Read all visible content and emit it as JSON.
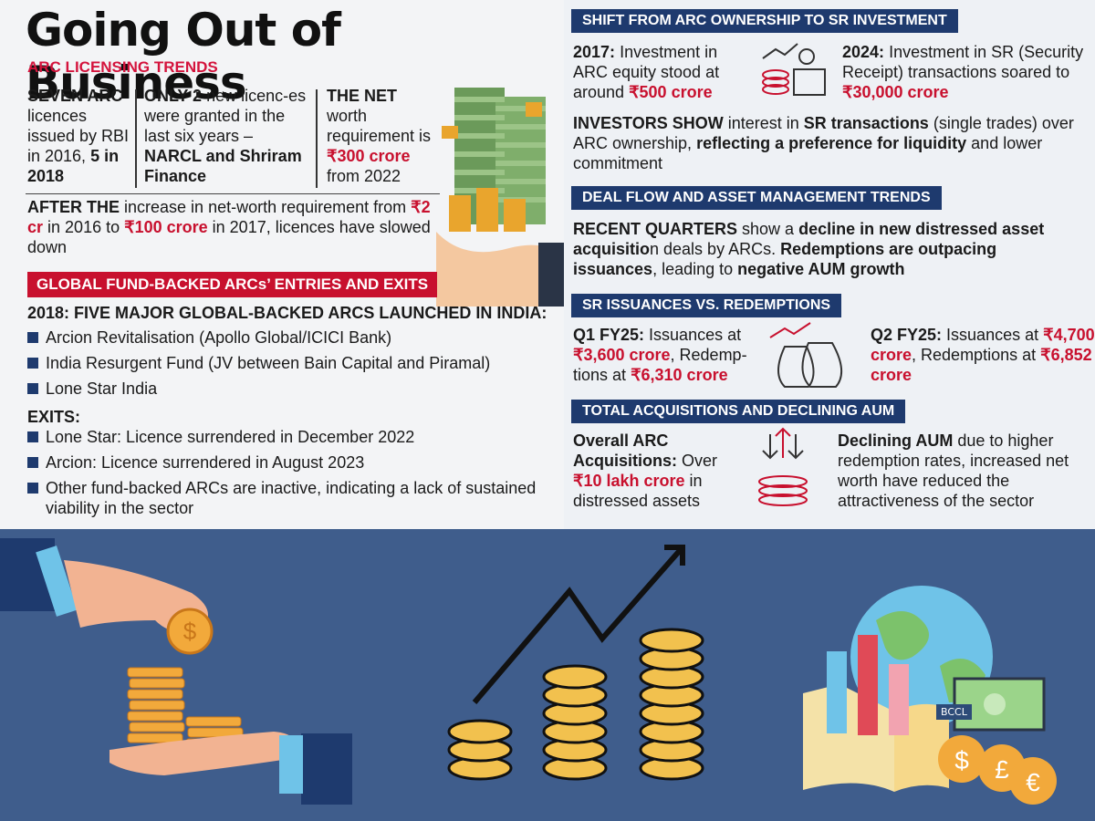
{
  "title": "Going Out of Business",
  "licensing": {
    "heading": "ARC LICENSING TRENDS",
    "col1_bold": "SEVEN ARC",
    "col1_text": "licences issued by RBI in 2016,",
    "col1_bold2": "5 in 2018",
    "col2_bold": "ONLY 2",
    "col2_text": "new licenc-es were granted in the last six years –",
    "col2_bold2": "NARCL and Shriram Finance",
    "col3_bold": "THE NET",
    "col3_text": "worth requirement is",
    "col3_red": "₹300 crore",
    "col3_text2": "from 2022",
    "after_bold": "AFTER THE",
    "after_text1": "increase in net-worth requirement from",
    "after_red1": "₹2 cr",
    "after_text2": "in 2016 to",
    "after_red2": "₹100 crore",
    "after_text3": "in 2017, licences have slowed down"
  },
  "global": {
    "heading": "GLOBAL FUND-BACKED ARCs’ ENTRIES AND EXITS",
    "launch_heading": "2018: FIVE MAJOR GLOBAL-BACKED ARCS LAUNCHED IN INDIA:",
    "launched": [
      "Arcion Revitalisation (Apollo Global/ICICI Bank)",
      "India Resurgent Fund (JV between Bain Capital and Piramal)",
      "Lone Star India"
    ],
    "exits_heading": "EXITS:",
    "exits": [
      "Lone Star: Licence surrendered in December 2022",
      "Arcion: Licence surrendered in August 2023",
      "Other fund-backed ARCs are inactive, indicating a lack of sustained viability in the sector"
    ]
  },
  "shift": {
    "heading": "SHIFT FROM ARC OWNERSHIP TO SR INVESTMENT",
    "y2017_bold": "2017:",
    "y2017_text": "Investment in ARC equity stood at around",
    "y2017_red": "₹500 crore",
    "y2024_bold": "2024:",
    "y2024_text": "Investment in SR (Security Receipt) transactions soared to",
    "y2024_red": "₹30,000 crore",
    "investors_bold": "INVESTORS SHOW",
    "investors_text1": "interest in",
    "investors_bold2": "SR transactions",
    "investors_text2": "(single trades) over ARC ownership,",
    "investors_bold3": "reflecting a preference for liquidity",
    "investors_text3": "and lower commitment"
  },
  "dealflow": {
    "heading": "DEAL FLOW AND ASSET MANAGEMENT TRENDS",
    "bold1": "RECENT QUARTERS",
    "text1": "show a",
    "bold2": "decline in new distressed asset acquisitio",
    "text2": "n deals by ARCs.",
    "bold3": "Redemptions are outpacing issuances",
    "text3": ", leading to",
    "bold4": "negative AUM growth"
  },
  "sr": {
    "heading": "SR ISSUANCES VS. REDEMPTIONS",
    "q1_bold": "Q1 FY25:",
    "q1_text1": "Issuances at",
    "q1_red1": "₹3,600 crore",
    "q1_text2": ", Redemp-tions at",
    "q1_red2": "₹6,310 crore",
    "q2_bold": "Q2 FY25:",
    "q2_text1": "Issuances at",
    "q2_red1": "₹4,700 crore",
    "q2_text2": ", Redemptions at",
    "q2_red2": "₹6,852 crore"
  },
  "total": {
    "heading": "TOTAL ACQUISITIONS AND DECLINING AUM",
    "acq_bold": "Overall ARC Acquisitions:",
    "acq_text": "Over",
    "acq_red": "₹10 lakh crore",
    "acq_text2": "in distressed assets",
    "aum_bold": "Declining AUM",
    "aum_text": "due to higher redemption rates, increased net worth have reduced the attractiveness of the sector"
  },
  "watermark": "BCCL",
  "colors": {
    "red": "#c8102e",
    "navy": "#1e3a6e",
    "bottom_bg": "#3f5d8c",
    "coin": "#f2a93b"
  },
  "icons": [
    "money-stack-icon",
    "growth-chart-coins-icon",
    "money-bags-icon",
    "arrows-coins-icon",
    "hand-coins-icon",
    "rising-coins-icon",
    "globe-chart-icon",
    "currency-icon"
  ]
}
